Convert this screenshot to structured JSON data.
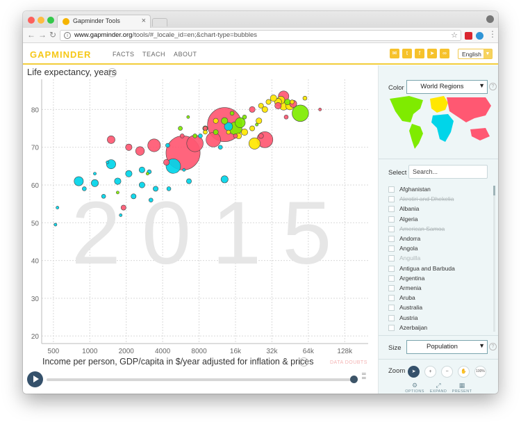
{
  "browser": {
    "tab_title": "Gapminder Tools",
    "url_host": "www.gapminder.org",
    "url_path": "/tools/#_locale_id=en;&chart-type=bubbles",
    "close_glyph": "×"
  },
  "header": {
    "logo": "GAPMINDER",
    "nav": [
      "FACTS",
      "TEACH",
      "ABOUT"
    ],
    "language": "English"
  },
  "chart": {
    "y_title": "Life expectancy, years",
    "x_title": "Income per person, GDP/capita in $/year adjusted for inflation & prices",
    "year_watermark": "2015",
    "data_doubts": "DATA DOUBTS"
  },
  "sidebar": {
    "color_label": "Color",
    "color_value": "World Regions",
    "select_label": "Select",
    "search_placeholder": "Search...",
    "countries": [
      {
        "name": "Afghanistan",
        "state": "normal"
      },
      {
        "name": "Akrotiri and Dhekelia",
        "state": "disabled"
      },
      {
        "name": "Albania",
        "state": "normal"
      },
      {
        "name": "Algeria",
        "state": "normal"
      },
      {
        "name": "American Samoa",
        "state": "disabled"
      },
      {
        "name": "Andorra",
        "state": "normal"
      },
      {
        "name": "Angola",
        "state": "normal"
      },
      {
        "name": "Anguilla",
        "state": "faded"
      },
      {
        "name": "Antigua and Barbuda",
        "state": "normal"
      },
      {
        "name": "Argentina",
        "state": "normal"
      },
      {
        "name": "Armenia",
        "state": "normal"
      },
      {
        "name": "Aruba",
        "state": "normal"
      },
      {
        "name": "Australia",
        "state": "normal"
      },
      {
        "name": "Austria",
        "state": "normal"
      },
      {
        "name": "Azerbaijan",
        "state": "normal"
      }
    ],
    "size_label": "Size",
    "size_value": "Population",
    "zoom_label": "Zoom",
    "zoom_percent": "100%",
    "tools": [
      "OPTIONS",
      "EXPAND",
      "PRESENT"
    ]
  },
  "colors": {
    "accent": "#f6c818",
    "asia": "#ff5872",
    "africa": "#00d5e9",
    "americas": "#7feb00",
    "europe": "#ffe700",
    "play": "#35516b"
  },
  "chart_data": {
    "type": "scatter",
    "title": "",
    "xlabel": "Income per person, GDP/capita in $/year adjusted for inflation & prices",
    "ylabel": "Life expectancy, years",
    "xscale": "log",
    "xlim": [
      400,
      200000
    ],
    "ylim": [
      18,
      88
    ],
    "xticks": [
      500,
      1000,
      2000,
      4000,
      8000,
      16000,
      32000,
      64000,
      128000
    ],
    "xticklabels": [
      "500",
      "1000",
      "2000",
      "4000",
      "8000",
      "16k",
      "32k",
      "64k",
      "128k"
    ],
    "yticks": [
      20,
      30,
      40,
      50,
      60,
      70,
      80
    ],
    "yticklabels": [
      "20",
      "30",
      "40",
      "50",
      "60",
      "70",
      "80"
    ],
    "grid": true,
    "series": [
      {
        "region": "Asia",
        "points": [
          [
            5900,
            68.5,
            1.37
          ],
          [
            13000,
            76,
            1.37
          ],
          [
            10500,
            72,
            0.25
          ],
          [
            7400,
            71,
            0.32
          ],
          [
            3400,
            70.5,
            0.19
          ],
          [
            2600,
            69,
            0.09
          ],
          [
            1500,
            72,
            0.07
          ],
          [
            2100,
            70,
            0.05
          ],
          [
            28000,
            72,
            0.3
          ],
          [
            40000,
            83.5,
            0.13
          ],
          [
            36000,
            81,
            0.05
          ],
          [
            48000,
            81.5,
            0.06
          ],
          [
            26000,
            73,
            0.03
          ],
          [
            22000,
            80,
            0.04
          ],
          [
            16000,
            73,
            0.02
          ],
          [
            1900,
            54,
            0.03
          ],
          [
            4300,
            66,
            0.04
          ],
          [
            5800,
            73,
            0.02
          ],
          [
            42000,
            78,
            0.02
          ],
          [
            9000,
            75,
            0.02
          ],
          [
            80000,
            80,
            0.01
          ]
        ]
      },
      {
        "region": "Africa",
        "points": [
          [
            4900,
            65,
            0.25
          ],
          [
            1500,
            65.5,
            0.1
          ],
          [
            810,
            61,
            0.1
          ],
          [
            1100,
            60.5,
            0.06
          ],
          [
            1700,
            61,
            0.05
          ],
          [
            2100,
            63,
            0.05
          ],
          [
            3500,
            59,
            0.03
          ],
          [
            2700,
            60,
            0.04
          ],
          [
            1300,
            57,
            0.02
          ],
          [
            2300,
            57,
            0.03
          ],
          [
            900,
            59,
            0.02
          ],
          [
            13000,
            61.5,
            0.06
          ],
          [
            6600,
            61,
            0.03
          ],
          [
            2700,
            64,
            0.04
          ],
          [
            3100,
            63.5,
            0.02
          ],
          [
            540,
            54,
            0.01
          ],
          [
            1100,
            63,
            0.01
          ],
          [
            520,
            49.5,
            0.01
          ],
          [
            3200,
            56,
            0.02
          ],
          [
            4500,
            59,
            0.02
          ],
          [
            8200,
            73,
            0.02
          ],
          [
            14000,
            75.5,
            0.08
          ],
          [
            4400,
            70.5,
            0.02
          ],
          [
            12000,
            70,
            0.02
          ],
          [
            1800,
            52,
            0.01
          ],
          [
            6000,
            64,
            0.01
          ],
          [
            1400,
            66,
            0.01
          ]
        ]
      },
      {
        "region": "Americas",
        "points": [
          [
            55000,
            79,
            0.32
          ],
          [
            16000,
            75,
            0.2
          ],
          [
            17500,
            76.5,
            0.12
          ],
          [
            43000,
            82,
            0.04
          ],
          [
            9000,
            75,
            0.03
          ],
          [
            13000,
            77,
            0.05
          ],
          [
            11000,
            74,
            0.03
          ],
          [
            15000,
            79,
            0.02
          ],
          [
            7400,
            73,
            0.02
          ],
          [
            5600,
            75,
            0.02
          ],
          [
            3000,
            63,
            0.01
          ],
          [
            24000,
            76,
            0.01
          ],
          [
            19000,
            78,
            0.02
          ],
          [
            6500,
            78,
            0.01
          ],
          [
            1700,
            58,
            0.01
          ]
        ]
      },
      {
        "region": "Europe",
        "points": [
          [
            23000,
            71,
            0.15
          ],
          [
            40000,
            81,
            0.09
          ],
          [
            38000,
            82.5,
            0.07
          ],
          [
            45000,
            81,
            0.08
          ],
          [
            36000,
            82,
            0.06
          ],
          [
            33000,
            83,
            0.05
          ],
          [
            25000,
            77,
            0.04
          ],
          [
            30000,
            82,
            0.03
          ],
          [
            47000,
            82,
            0.02
          ],
          [
            60000,
            83,
            0.02
          ],
          [
            19000,
            74,
            0.05
          ],
          [
            17000,
            73,
            0.04
          ],
          [
            28000,
            80,
            0.04
          ],
          [
            22000,
            75,
            0.03
          ],
          [
            11000,
            77,
            0.03
          ],
          [
            14000,
            74,
            0.02
          ],
          [
            9000,
            74,
            0.02
          ],
          [
            26000,
            81,
            0.03
          ]
        ]
      }
    ]
  }
}
